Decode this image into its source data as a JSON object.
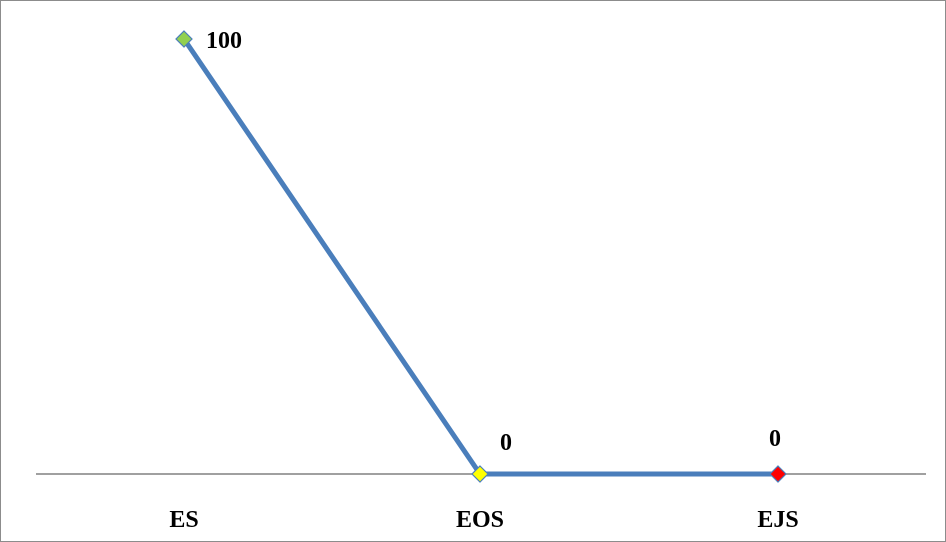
{
  "chart_data": {
    "type": "line",
    "title": "",
    "xlabel": "",
    "ylabel": "",
    "categories": [
      "ES",
      "EOS",
      "EJS"
    ],
    "series": [
      {
        "values": [
          100,
          0,
          0
        ],
        "line_color": "#4a7ebb",
        "marker": "diamond",
        "marker_colors": [
          "#92d050",
          "#ffff00",
          "#ff0000"
        ],
        "data_labels": [
          "100",
          "0",
          "0"
        ]
      }
    ],
    "ylim": [
      0,
      100
    ],
    "grid": false,
    "legend": "none"
  }
}
